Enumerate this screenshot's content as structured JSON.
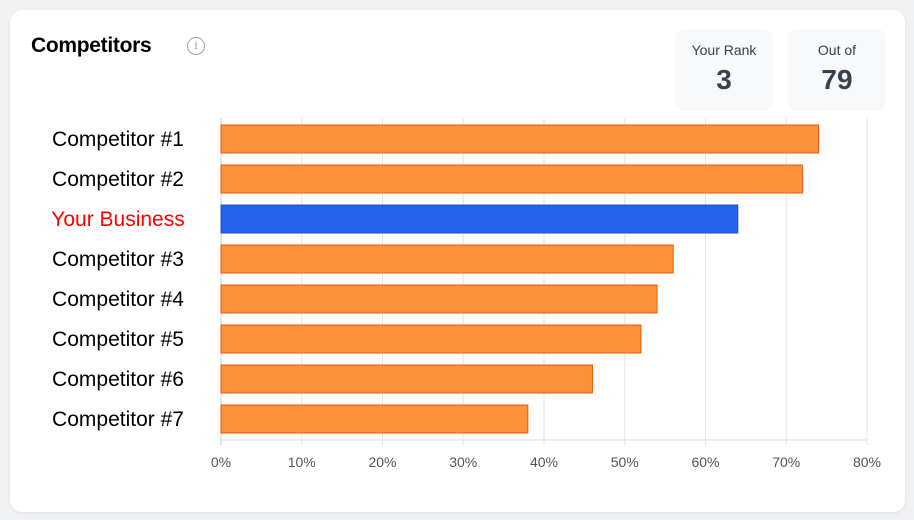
{
  "header": {
    "title": "Competitors",
    "info_icon": "info-circle-icon"
  },
  "stats": [
    {
      "label": "Your Rank",
      "value": "3"
    },
    {
      "label": "Out of",
      "value": "79"
    }
  ],
  "chart_data": {
    "type": "bar",
    "orientation": "horizontal",
    "categories": [
      "Competitor #1",
      "Competitor #2",
      "Your Business",
      "Competitor #3",
      "Competitor #4",
      "Competitor #5",
      "Competitor #6",
      "Competitor #7"
    ],
    "values": [
      74,
      72,
      64,
      56,
      54,
      52,
      46,
      38
    ],
    "highlight": "Your Business",
    "xlim": [
      0,
      80
    ],
    "xticks": [
      "0%",
      "10%",
      "20%",
      "30%",
      "40%",
      "50%",
      "60%",
      "70%",
      "80%"
    ],
    "grid": true,
    "colors": {
      "bar": "#fb923c",
      "bar_border": "#ea580c",
      "highlight_bar": "#2563eb",
      "highlight_label": "#ff0000"
    }
  }
}
